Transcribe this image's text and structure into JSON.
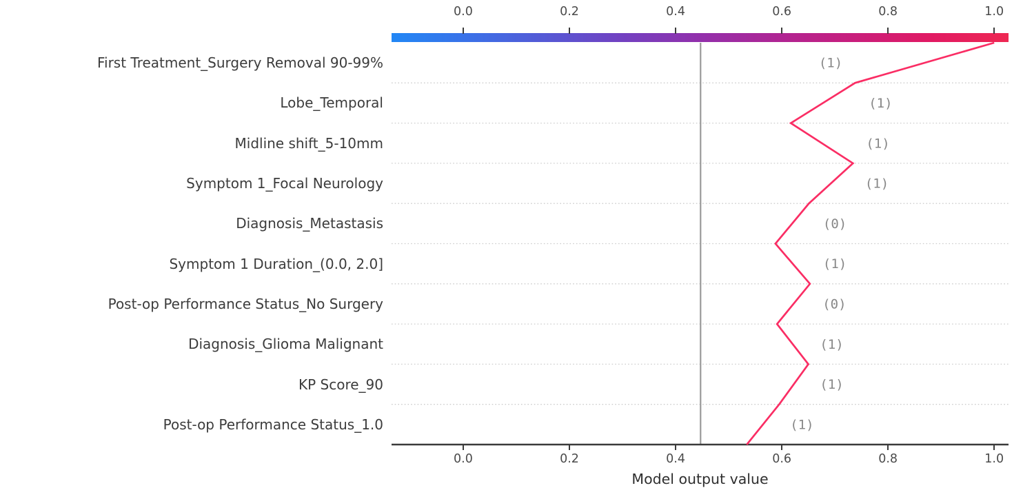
{
  "chart_data": {
    "type": "line",
    "chart_kind": "shap_decision_plot",
    "title": "",
    "xlabel": "Model output value",
    "x_tick_values": [
      0.0,
      0.2,
      0.4,
      0.6,
      0.8,
      1.0
    ],
    "x_tick_labels": [
      "0.0",
      "0.2",
      "0.4",
      "0.6",
      "0.8",
      "1.0"
    ],
    "xlim": [
      -0.135,
      1.027
    ],
    "grid": "horizontal-dotted",
    "legend": null,
    "base_value": 0.447,
    "final_model_output": 1.0,
    "cumulative_path_bottom_to_top": [
      0.534,
      0.595,
      0.65,
      0.591,
      0.653,
      0.588,
      0.651,
      0.734,
      0.617,
      0.738,
      1.0
    ],
    "features": [
      {
        "label": "First Treatment_Surgery Removal 90-99%",
        "value_label": "(1)",
        "feature_value": 1,
        "effect": 0.262,
        "annotation_x": 0.692
      },
      {
        "label": "Lobe_Temporal",
        "value_label": "(1)",
        "feature_value": 1,
        "effect": 0.121,
        "annotation_x": 0.786
      },
      {
        "label": "Midline shift_5-10mm",
        "value_label": "(1)",
        "feature_value": 1,
        "effect": -0.117,
        "annotation_x": 0.781
      },
      {
        "label": "Symptom 1_Focal Neurology",
        "value_label": "(1)",
        "feature_value": 1,
        "effect": 0.083,
        "annotation_x": 0.779
      },
      {
        "label": "Diagnosis_Metastasis",
        "value_label": "(0)",
        "feature_value": 0,
        "effect": 0.063,
        "annotation_x": 0.7
      },
      {
        "label": "Symptom 1 Duration_(0.0, 2.0]",
        "value_label": "(1)",
        "feature_value": 1,
        "effect": -0.065,
        "annotation_x": 0.7
      },
      {
        "label": "Post-op Performance Status_No Surgery",
        "value_label": "(0)",
        "feature_value": 0,
        "effect": 0.062,
        "annotation_x": 0.699
      },
      {
        "label": "Diagnosis_Glioma Malignant",
        "value_label": "(1)",
        "feature_value": 1,
        "effect": -0.059,
        "annotation_x": 0.694
      },
      {
        "label": "KP Score_90",
        "value_label": "(1)",
        "feature_value": 1,
        "effect": 0.055,
        "annotation_x": 0.694
      },
      {
        "label": "Post-op Performance Status_1.0",
        "value_label": "(1)",
        "feature_value": 1,
        "effect": 0.061,
        "annotation_x": 0.638
      }
    ],
    "colors": {
      "line": "#fa2d64",
      "base_value_line": "#9a9a9a",
      "gridline": "#cccccc",
      "axis_line": "#3a3a3a",
      "tick_label": "#4a4a4a",
      "feature_label": "#3c3c3c",
      "annotation": "#878787",
      "colorbar_gradient": [
        "#2287f5",
        "#3b71e8",
        "#5659d5",
        "#7341c1",
        "#9230ab",
        "#af2594",
        "#c91e7c",
        "#e11a63",
        "#ee2853"
      ]
    }
  }
}
